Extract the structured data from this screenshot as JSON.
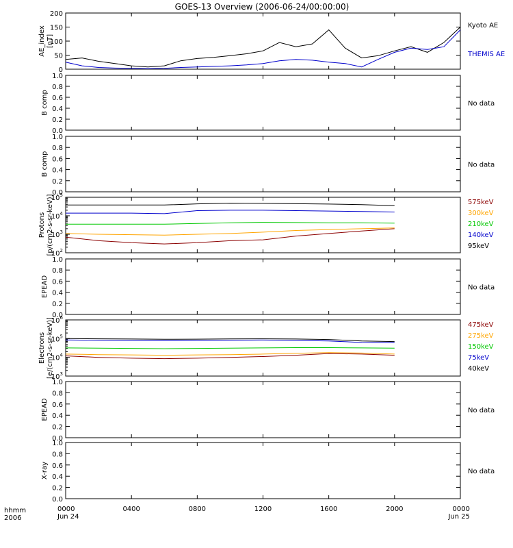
{
  "title": "GOES-13 Overview (2006-06-24/00:00:00)",
  "colors": {
    "black": "#000000",
    "blue": "#0000cc",
    "green": "#00c800",
    "orange": "#ffa500",
    "darkred": "#8b0000"
  },
  "chart_data": [
    {
      "type": "line",
      "ylabel": "AE_index [nT]",
      "ylim": [
        0,
        200
      ],
      "y_ticks": [
        "0",
        "50",
        "100",
        "150",
        "200"
      ],
      "x": [
        0,
        1,
        2,
        3,
        4,
        5,
        6,
        7,
        8,
        9,
        10,
        11,
        12,
        13,
        14,
        15,
        16,
        17,
        18,
        19,
        20,
        21,
        22,
        23,
        24
      ],
      "series": [
        {
          "name": "Kyoto AE",
          "color": "black",
          "values": [
            35,
            40,
            28,
            20,
            12,
            8,
            12,
            30,
            38,
            42,
            48,
            55,
            65,
            95,
            80,
            90,
            140,
            75,
            40,
            48,
            65,
            80,
            60,
            95,
            150
          ]
        },
        {
          "name": "THEMIS AE",
          "color": "blue",
          "values": [
            25,
            12,
            6,
            4,
            3,
            2,
            3,
            6,
            8,
            10,
            12,
            15,
            20,
            30,
            35,
            32,
            25,
            20,
            8,
            35,
            60,
            75,
            70,
            80,
            140
          ]
        }
      ],
      "legend": "right"
    },
    {
      "type": "line",
      "ylabel": "B comp",
      "ylim": [
        0,
        1
      ],
      "y_ticks": [
        "0.0",
        "0.2",
        "0.4",
        "0.6",
        "0.8",
        "1.0"
      ],
      "status": "No data"
    },
    {
      "type": "line",
      "ylabel": "B comp",
      "ylim": [
        0,
        1
      ],
      "y_ticks": [
        "0.0",
        "0.2",
        "0.4",
        "0.6",
        "0.8",
        "1.0"
      ],
      "status": "No data"
    },
    {
      "type": "line",
      "ylabel": "Protons [p/(cm2-s-sr-keV)]",
      "yscale": "log",
      "ylim": [
        100,
        100000
      ],
      "y_tick_exponents": [
        "2",
        "3",
        "4",
        "5"
      ],
      "x": [
        0,
        2,
        4,
        6,
        8,
        10,
        12,
        14,
        16,
        18,
        20
      ],
      "series": [
        {
          "name": "575keV",
          "color": "darkred",
          "values": [
            700,
            450,
            350,
            300,
            350,
            450,
            500,
            800,
            1100,
            1500,
            2000
          ]
        },
        {
          "name": "300keV",
          "color": "orange",
          "values": [
            1100,
            1000,
            950,
            900,
            1000,
            1100,
            1300,
            1600,
            1800,
            2000,
            2200
          ]
        },
        {
          "name": "210keV",
          "color": "green",
          "values": [
            3500,
            3500,
            3500,
            3500,
            3800,
            4200,
            4400,
            4300,
            4200,
            4200,
            4000
          ]
        },
        {
          "name": "140keV",
          "color": "blue",
          "values": [
            14000,
            14000,
            14000,
            13000,
            19000,
            20000,
            20000,
            19000,
            18000,
            17000,
            16000
          ]
        },
        {
          "name": "95keV",
          "color": "black",
          "values": [
            38000,
            38000,
            38000,
            38000,
            44000,
            48000,
            47000,
            45000,
            43000,
            40000,
            35000
          ]
        }
      ],
      "legend": "right"
    },
    {
      "type": "line",
      "ylabel": "EPEAD",
      "ylim": [
        0,
        1
      ],
      "y_ticks": [
        "0.0",
        "0.2",
        "0.4",
        "0.6",
        "0.8",
        "1.0"
      ],
      "status": "No data"
    },
    {
      "type": "line",
      "ylabel": "Electrons [e/(cm2-s-sr-keV)]",
      "yscale": "log",
      "ylim": [
        1000,
        1000000
      ],
      "y_tick_exponents": [
        "3",
        "4",
        "5",
        "6"
      ],
      "x": [
        0,
        2,
        4,
        6,
        8,
        10,
        12,
        14,
        16,
        18,
        20
      ],
      "series": [
        {
          "name": "475keV",
          "color": "darkred",
          "values": [
            12000,
            10000,
            9000,
            8500,
            9000,
            10000,
            11000,
            13000,
            16000,
            15000,
            13000
          ]
        },
        {
          "name": "275keV",
          "color": "orange",
          "values": [
            15000,
            14000,
            13500,
            13000,
            13500,
            14000,
            15000,
            16500,
            18000,
            17000,
            15000
          ]
        },
        {
          "name": "150keV",
          "color": "green",
          "values": [
            32000,
            31000,
            30000,
            29000,
            30000,
            31000,
            32000,
            33000,
            33000,
            32000,
            31000
          ]
        },
        {
          "name": "75keV",
          "color": "blue",
          "values": [
            85000,
            82000,
            80000,
            78000,
            80000,
            82000,
            84000,
            80000,
            75000,
            62000,
            60000
          ]
        },
        {
          "name": "40keV",
          "color": "black",
          "values": [
            100000,
            98000,
            95000,
            92000,
            94000,
            96000,
            98000,
            95000,
            90000,
            75000,
            70000
          ]
        }
      ],
      "legend": "right"
    },
    {
      "type": "line",
      "ylabel": "EPEAD",
      "ylim": [
        0,
        1
      ],
      "y_ticks": [
        "0.0",
        "0.2",
        "0.4",
        "0.6",
        "0.8",
        "1.0"
      ],
      "status": "No data"
    },
    {
      "type": "line",
      "ylabel": "X-ray",
      "ylim": [
        0,
        1
      ],
      "y_ticks": [
        "0.0",
        "0.2",
        "0.4",
        "0.6",
        "0.8",
        "1.0"
      ],
      "status": "No data"
    }
  ],
  "x_axis": {
    "ticks": [
      {
        "hour": 0,
        "label": "0000",
        "sub": "Jun 24"
      },
      {
        "hour": 4,
        "label": "0400",
        "sub": ""
      },
      {
        "hour": 8,
        "label": "0800",
        "sub": ""
      },
      {
        "hour": 12,
        "label": "1200",
        "sub": ""
      },
      {
        "hour": 16,
        "label": "1600",
        "sub": ""
      },
      {
        "hour": 20,
        "label": "2000",
        "sub": ""
      },
      {
        "hour": 24,
        "label": "0000",
        "sub": "Jun 25"
      }
    ],
    "label_line1": "hhmm",
    "label_line2": "2006"
  }
}
